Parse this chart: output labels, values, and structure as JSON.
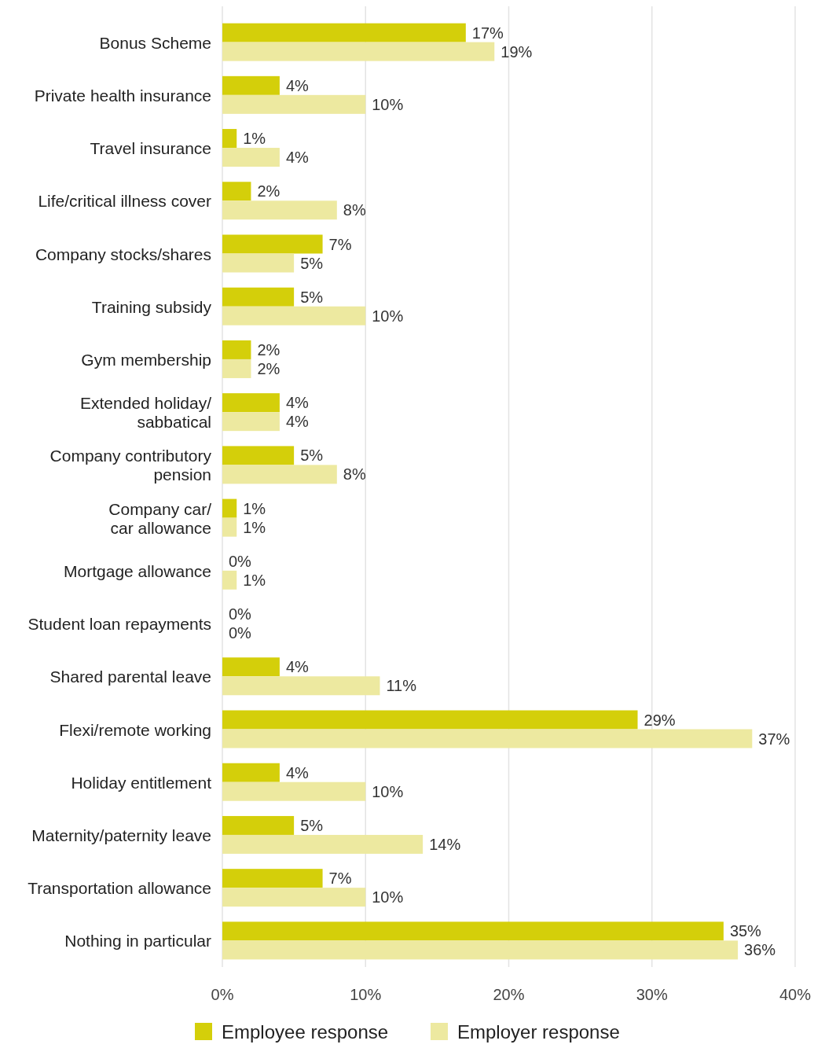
{
  "chart_data": {
    "type": "bar",
    "orientation": "horizontal",
    "categories": [
      "Bonus Scheme",
      "Private health insurance",
      "Travel insurance",
      "Life/critical illness cover",
      "Company stocks/shares",
      "Training subsidy",
      "Gym membership",
      "Extended holiday/\nsabbatical",
      "Company contributory\npension",
      "Company car/\ncar allowance",
      "Mortgage allowance",
      "Student loan repayments",
      "Shared parental leave",
      "Flexi/remote working",
      "Holiday entitlement",
      "Maternity/paternity leave",
      "Transportation allowance",
      "Nothing in particular"
    ],
    "series": [
      {
        "name": "Employee response",
        "color": "#d4cf0a",
        "values": [
          17,
          4,
          1,
          2,
          7,
          5,
          2,
          4,
          5,
          1,
          0,
          0,
          4,
          29,
          4,
          5,
          7,
          35
        ],
        "value_labels": [
          "17%",
          "4%",
          "1%",
          "2%",
          "7%",
          "5%",
          "2%",
          "4%",
          "5%",
          "1%",
          "0%",
          "0%",
          "4%",
          "29%",
          "4%",
          "5%",
          "7%",
          "35%"
        ]
      },
      {
        "name": "Employer response",
        "color": "#ede9a0",
        "values": [
          19,
          10,
          4,
          8,
          5,
          10,
          2,
          4,
          8,
          1,
          1,
          0,
          11,
          37,
          10,
          14,
          10,
          36
        ],
        "value_labels": [
          "19%",
          "10%",
          "4%",
          "8%",
          "5%",
          "10%",
          "2%",
          "4%",
          "8%",
          "1%",
          "1%",
          "0%",
          "11%",
          "37%",
          "10%",
          "14%",
          "10%",
          "36%"
        ]
      }
    ],
    "xlim": [
      0,
      40
    ],
    "xticks": [
      {
        "value": 0,
        "label": "0%"
      },
      {
        "value": 10,
        "label": "10%"
      },
      {
        "value": 20,
        "label": "20%"
      },
      {
        "value": 30,
        "label": "30%"
      },
      {
        "value": 40,
        "label": "40%"
      }
    ],
    "grid": "x",
    "legend": "bottom"
  }
}
